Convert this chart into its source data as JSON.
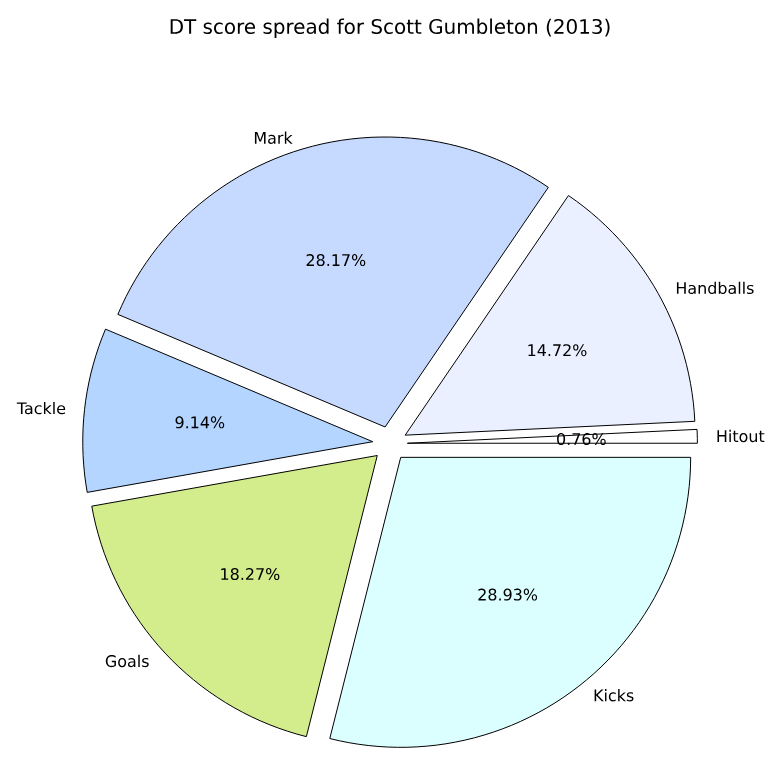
{
  "chart_data": {
    "type": "pie",
    "title": "DT score spread for Scott Gumbleton (2013)",
    "categories": [
      "Hitout",
      "Handballs",
      "Mark",
      "Tackle",
      "Goals",
      "Kicks"
    ],
    "values": [
      0.76,
      14.72,
      28.17,
      9.14,
      18.27,
      28.93
    ],
    "value_labels": [
      "0.76%",
      "14.72%",
      "28.17%",
      "9.14%",
      "18.27%",
      "28.93%"
    ],
    "colors": [
      "#ffffff",
      "#eaf0ff",
      "#c6d9ff",
      "#b3d5ff",
      "#d3ec8c",
      "#dbffff"
    ]
  }
}
